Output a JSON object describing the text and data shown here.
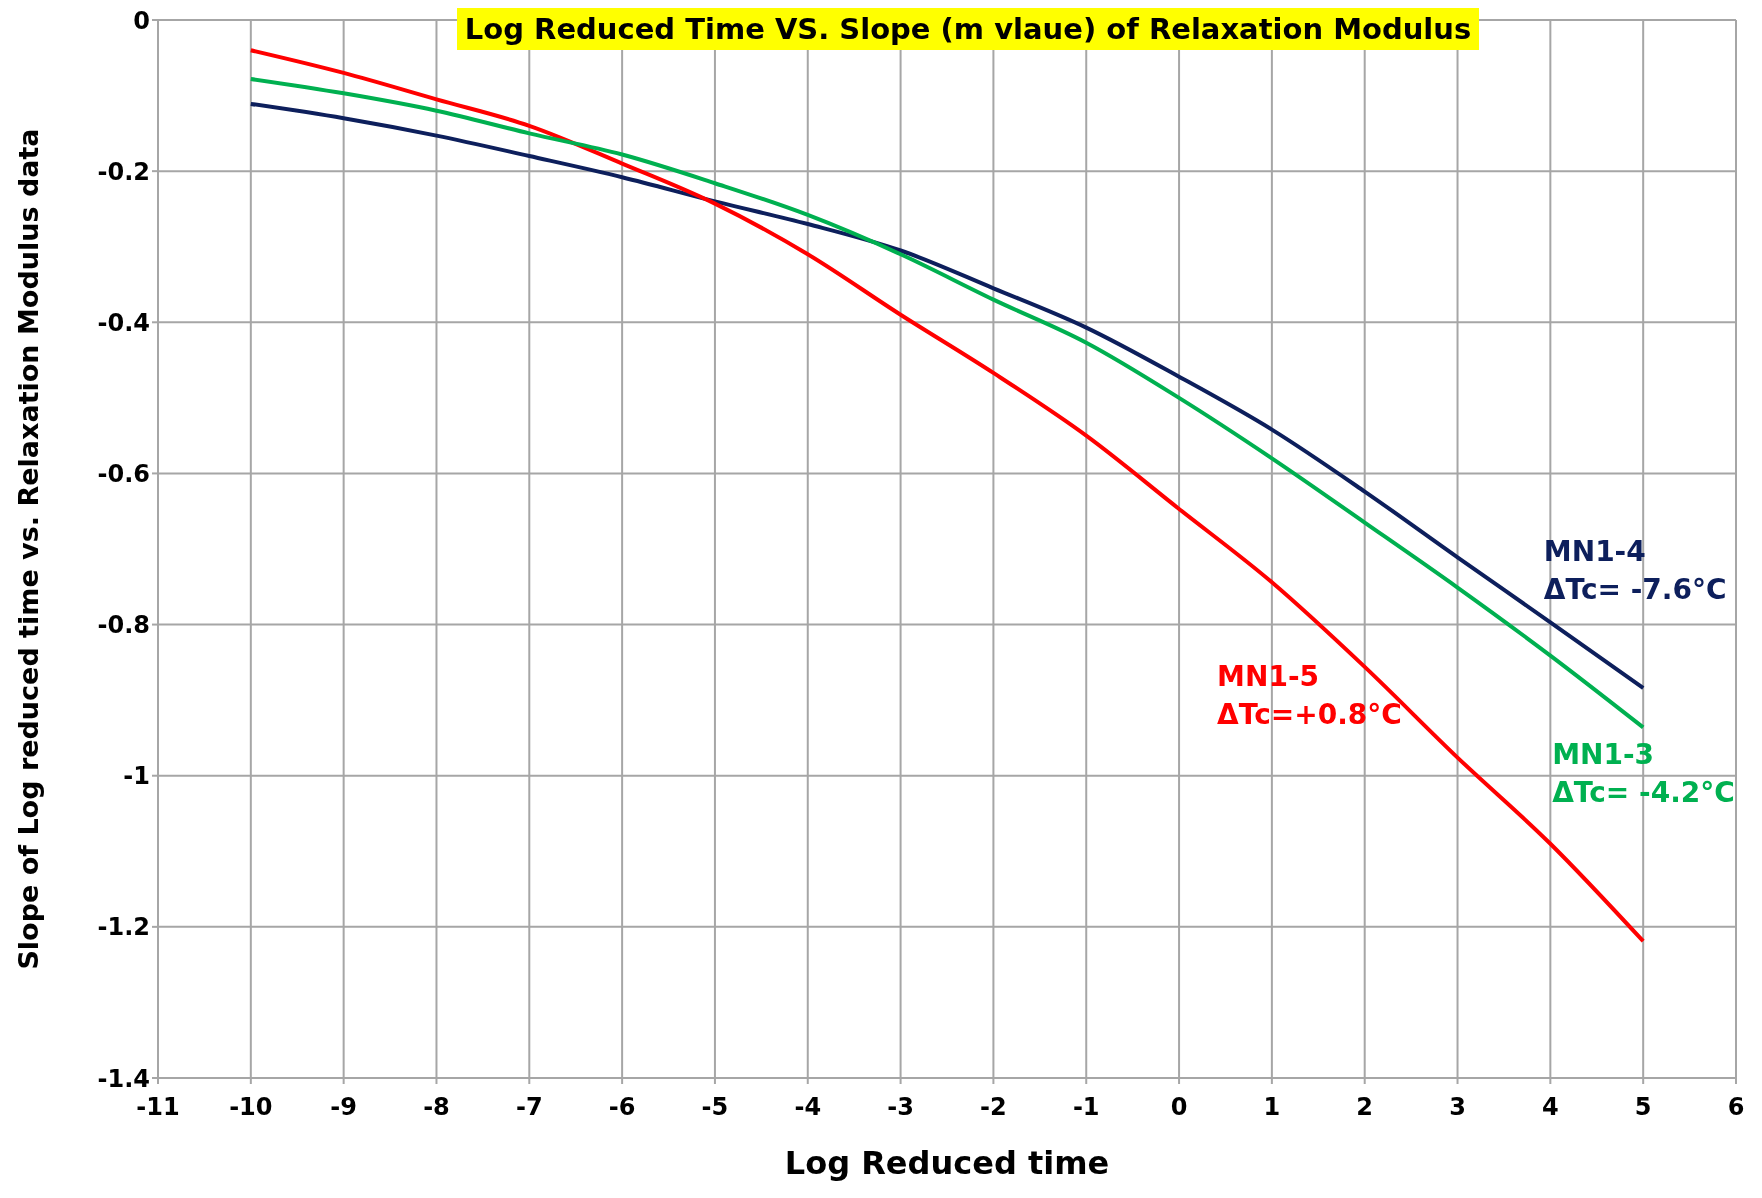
{
  "chart_data": {
    "type": "line",
    "title": "Log Reduced Time VS. Slope (m vlaue) of Relaxation Modulus",
    "xlabel": "Log Reduced time",
    "ylabel": "Slope of Log reduced time vs. Relaxation Modulus data",
    "x": [
      -10,
      -9,
      -8,
      -7,
      -6,
      -5,
      -4,
      -3,
      -2,
      -1,
      0,
      1,
      2,
      3,
      4,
      5
    ],
    "series": [
      {
        "name": "MN1-4",
        "color": "#0d1f5c",
        "values": [
          -0.111,
          -0.13,
          -0.153,
          -0.18,
          -0.208,
          -0.24,
          -0.27,
          -0.305,
          -0.355,
          -0.407,
          -0.472,
          -0.542,
          -0.624,
          -0.711,
          -0.797,
          -0.884
        ]
      },
      {
        "name": "MN1-5",
        "color": "#ff0000",
        "values": [
          -0.04,
          -0.07,
          -0.105,
          -0.14,
          -0.19,
          -0.243,
          -0.31,
          -0.39,
          -0.467,
          -0.55,
          -0.647,
          -0.744,
          -0.856,
          -0.976,
          -1.09,
          -1.219
        ]
      },
      {
        "name": "MN1-3",
        "color": "#00b050",
        "values": [
          -0.078,
          -0.097,
          -0.12,
          -0.15,
          -0.178,
          -0.216,
          -0.258,
          -0.31,
          -0.37,
          -0.427,
          -0.5,
          -0.58,
          -0.665,
          -0.751,
          -0.841,
          -0.936
        ]
      }
    ],
    "annotations": [
      "ΔTc= -7.6°C",
      "ΔTc=+0.8°C",
      "ΔTc= -4.2°C"
    ],
    "xlim": [
      -11,
      6
    ],
    "xticks": [
      -11,
      -10,
      -9,
      -8,
      -7,
      -6,
      -5,
      -4,
      -3,
      -2,
      -1,
      0,
      1,
      2,
      3,
      4,
      5,
      6
    ],
    "ylim": [
      -1.4,
      0
    ],
    "yticks": [
      -1.4,
      -1.2,
      -1,
      -0.8,
      -0.6,
      -0.4,
      -0.2,
      0
    ],
    "grid": true,
    "legend": false,
    "marker": "none",
    "line_style": "solid"
  }
}
